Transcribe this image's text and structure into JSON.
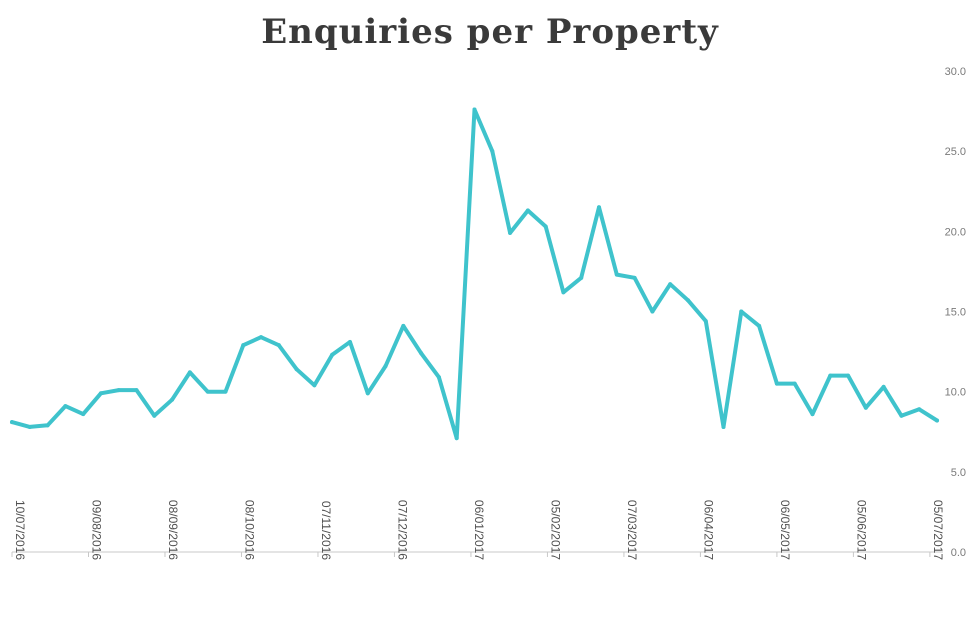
{
  "chart_data": {
    "type": "line",
    "title": "Enquiries per Property",
    "xlabel": "",
    "ylabel": "",
    "ylim": [
      0,
      30
    ],
    "y_axis_side": "right",
    "yticks": [
      "0.0",
      "5.0",
      "10.0",
      "15.0",
      "20.0",
      "25.0",
      "30.0"
    ],
    "x_tick_labels": [
      "10/07/2016",
      "09/08/2016",
      "08/09/2016",
      "08/10/2016",
      "07/11/2016",
      "07/12/2016",
      "06/01/2017",
      "05/02/2017",
      "07/03/2017",
      "06/04/2017",
      "06/05/2017",
      "05/06/2017",
      "05/07/2017"
    ],
    "x_tick_positions": [
      0,
      4.3,
      8.6,
      12.9,
      17.2,
      21.5,
      25.8,
      30.1,
      34.4,
      38.7,
      43.0,
      47.3,
      51.6
    ],
    "grid": false,
    "legend": "none",
    "line_color": "#3fc3cc",
    "series": [
      {
        "values": [
          8.1,
          7.8,
          7.9,
          9.1,
          8.6,
          9.9,
          10.1,
          10.1,
          8.5,
          9.5,
          11.2,
          10.0,
          10.0,
          12.9,
          13.4,
          12.9,
          11.4,
          10.4,
          12.3,
          13.1,
          9.9,
          11.6,
          14.1,
          12.4,
          10.9,
          7.1,
          27.6,
          25.0,
          19.9,
          21.3,
          20.3,
          16.2,
          17.1,
          21.5,
          17.3,
          17.1,
          15.0,
          16.7,
          15.7,
          14.4,
          7.8,
          15.0,
          14.1,
          10.5,
          10.5,
          8.6,
          11.0,
          11.0,
          9.0,
          10.3,
          8.5,
          8.9,
          8.2
        ]
      }
    ]
  }
}
